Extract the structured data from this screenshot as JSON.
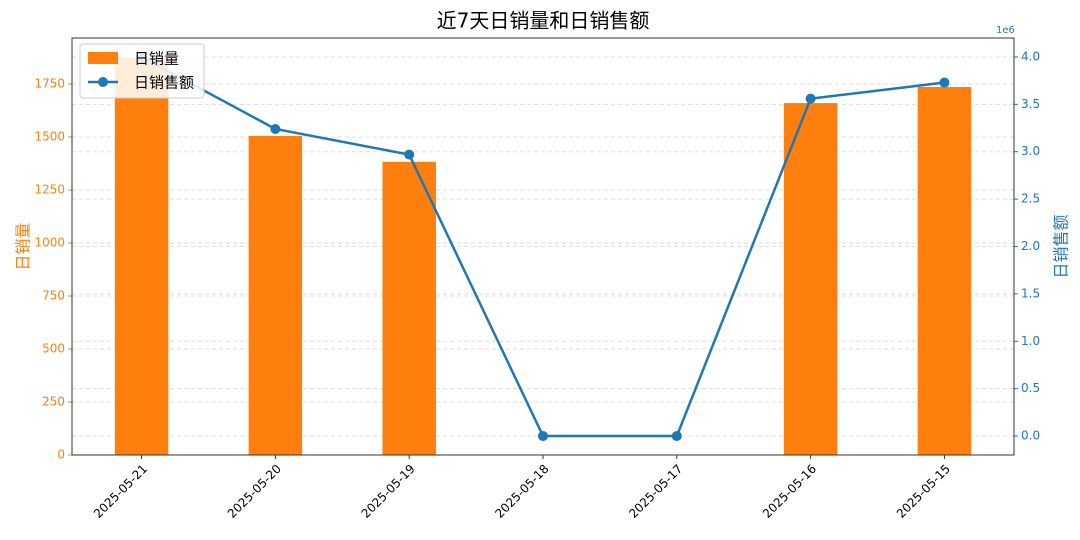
{
  "chart_data": {
    "type": "bar",
    "title": "近7天日销量和日销售额",
    "categories": [
      "2025-05-21",
      "2025-05-20",
      "2025-05-19",
      "2025-05-18",
      "2025-05-17",
      "2025-05-16",
      "2025-05-15"
    ],
    "series": [
      {
        "name": "日销量",
        "color": "#ff7f0e",
        "type": "bar",
        "values": [
          1873,
          1505,
          1383,
          0,
          0,
          1660,
          1736
        ]
      },
      {
        "name": "日销售额",
        "color": "#1f77b4",
        "type": "line",
        "axis": "y2",
        "values": [
          4.0,
          3.24,
          2.97,
          0,
          0,
          3.56,
          3.73
        ]
      }
    ],
    "ylabel": "日销量",
    "y2label": "日销售额",
    "y2offset": "1e6",
    "ylim": [
      0,
      1967
    ],
    "yticks": [
      0,
      250,
      500,
      750,
      1000,
      1250,
      1500,
      1750
    ],
    "y2lim": [
      -0.2,
      4.2
    ],
    "y2ticks": [
      {
        "value": 0,
        "label": "0.0"
      },
      {
        "value": 0.5,
        "label": "0.5"
      },
      {
        "value": 1,
        "label": "1.0"
      },
      {
        "value": 1.5,
        "label": "1.5"
      },
      {
        "value": 2,
        "label": "2.0"
      },
      {
        "value": 2.5,
        "label": "2.5"
      },
      {
        "value": 3,
        "label": "3.0"
      },
      {
        "value": 3.5,
        "label": "3.5"
      },
      {
        "value": 4,
        "label": "4.0"
      }
    ],
    "grid": true,
    "legend": "upper left"
  }
}
